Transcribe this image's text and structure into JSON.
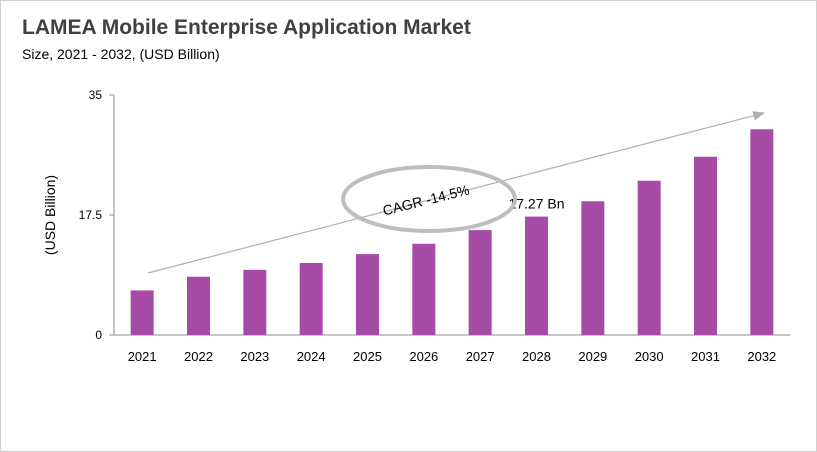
{
  "header": {
    "title": "LAMEA Mobile Enterprise Application Market",
    "subtitle": "Size, 2021 - 2032, (USD Billion)"
  },
  "chart_data": {
    "type": "bar",
    "categories": [
      "2021",
      "2022",
      "2023",
      "2024",
      "2025",
      "2026",
      "2027",
      "2028",
      "2029",
      "2030",
      "2031",
      "2032"
    ],
    "values": [
      6.5,
      8.5,
      9.5,
      10.5,
      11.8,
      13.3,
      15.3,
      17.27,
      19.5,
      22.5,
      26.0,
      30.0
    ],
    "ylabel": "(USD Billion)",
    "ylim": [
      0,
      35
    ],
    "yticks": [
      "0",
      "17.5",
      "35"
    ],
    "bar_color": "#a64ca6",
    "grid": false,
    "annotations": {
      "bar_label": "17.27 Bn",
      "bar_label_category": "2028",
      "cagr": "CAGR -14.5%"
    }
  }
}
